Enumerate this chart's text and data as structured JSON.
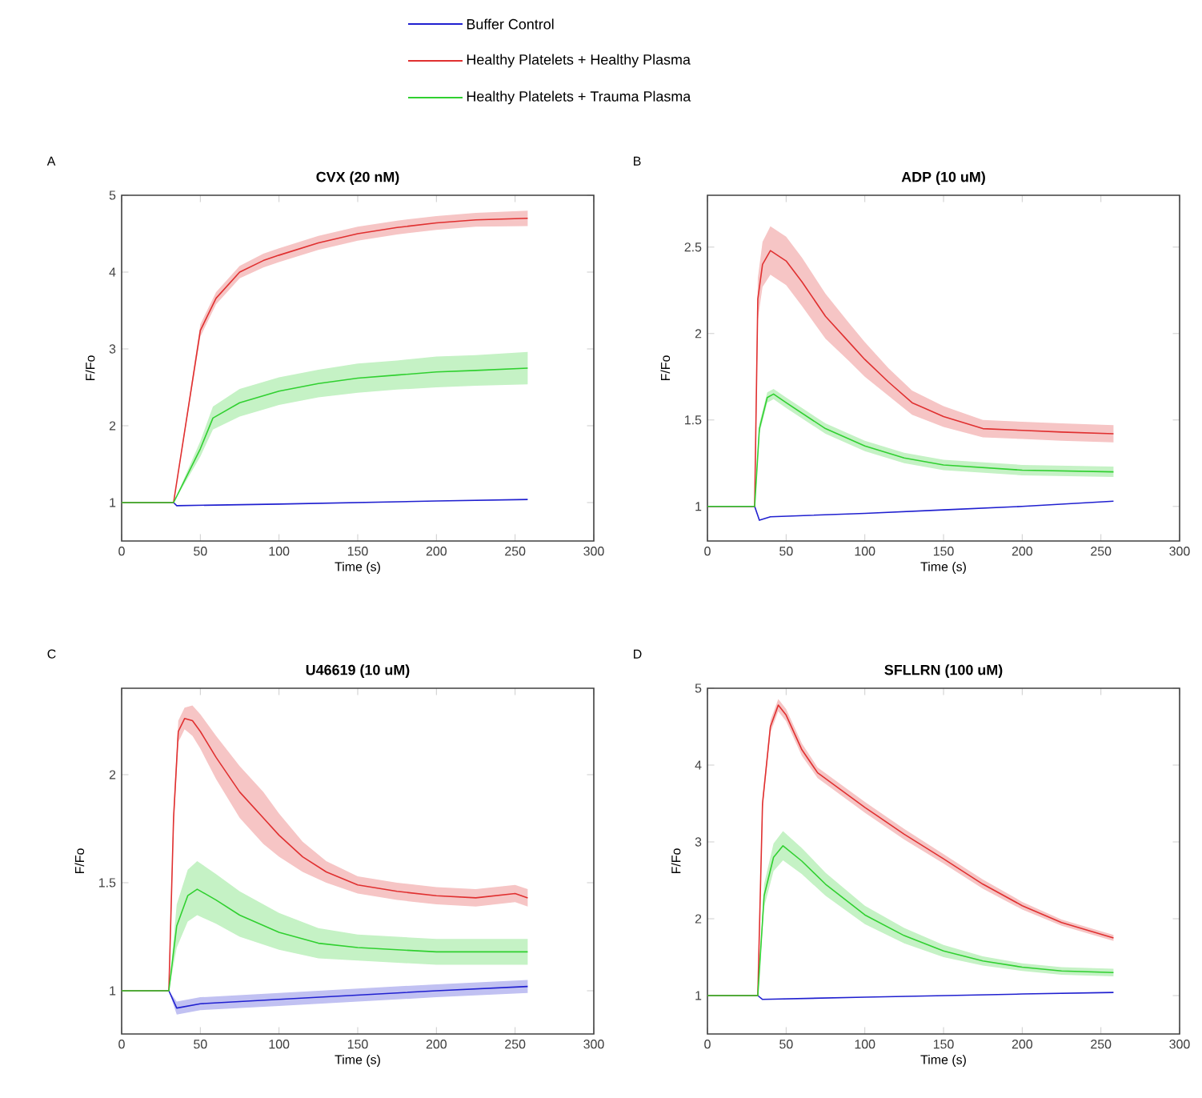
{
  "chart_data": [
    {
      "type": "line",
      "title": "CVX (20 nM)",
      "xlabel": "Time (s)",
      "ylabel": "F/Fo",
      "annotations": [
        "A"
      ],
      "legend": "top",
      "xlim": [
        0,
        300
      ],
      "ylim": [
        0.5,
        5
      ],
      "xticks": [
        0,
        50,
        100,
        150,
        200,
        250,
        300
      ],
      "yticks": [
        1,
        2,
        3,
        4,
        5
      ],
      "series": [
        {
          "name": "Buffer Control",
          "color": "#2020d0",
          "x": [
            0,
            33,
            35,
            100,
            200,
            258
          ],
          "values": [
            1,
            1,
            0.96,
            0.98,
            1.02,
            1.04
          ]
        },
        {
          "name": "Healthy Platelets + Healthy Plasma",
          "color": "#e03030",
          "x": [
            0,
            33,
            50,
            60,
            75,
            90,
            100,
            125,
            150,
            175,
            200,
            225,
            258
          ],
          "values": [
            1,
            1,
            3.24,
            3.66,
            4.0,
            4.15,
            4.22,
            4.38,
            4.5,
            4.58,
            4.64,
            4.68,
            4.7
          ],
          "lower": [
            1,
            1,
            3.16,
            3.58,
            3.92,
            4.06,
            4.13,
            4.29,
            4.41,
            4.49,
            4.55,
            4.59,
            4.6
          ],
          "upper": [
            1,
            1,
            3.32,
            3.74,
            4.08,
            4.24,
            4.31,
            4.47,
            4.59,
            4.67,
            4.73,
            4.77,
            4.8
          ]
        },
        {
          "name": "Healthy Platelets + Trauma Plasma",
          "color": "#30d030",
          "x": [
            0,
            33,
            50,
            58,
            75,
            100,
            125,
            150,
            175,
            200,
            225,
            258
          ],
          "values": [
            1,
            1,
            1.7,
            2.1,
            2.3,
            2.45,
            2.55,
            2.62,
            2.66,
            2.7,
            2.72,
            2.75
          ],
          "lower": [
            1,
            1,
            1.6,
            1.95,
            2.12,
            2.27,
            2.37,
            2.43,
            2.47,
            2.5,
            2.52,
            2.54
          ],
          "upper": [
            1,
            1,
            1.8,
            2.25,
            2.48,
            2.63,
            2.73,
            2.81,
            2.85,
            2.9,
            2.92,
            2.96
          ]
        }
      ]
    },
    {
      "type": "line",
      "title": "ADP (10 uM)",
      "xlabel": "Time (s)",
      "ylabel": "F/Fo",
      "annotations": [
        "B"
      ],
      "xlim": [
        0,
        300
      ],
      "ylim": [
        0.8,
        2.8
      ],
      "xticks": [
        0,
        50,
        100,
        150,
        200,
        250,
        300
      ],
      "yticks": [
        1,
        1.5,
        2,
        2.5
      ],
      "series": [
        {
          "color": "#2020d0",
          "x": [
            0,
            30,
            33,
            40,
            100,
            150,
            200,
            258
          ],
          "values": [
            1,
            1,
            0.92,
            0.94,
            0.96,
            0.98,
            1.0,
            1.03
          ]
        },
        {
          "color": "#e03030",
          "x": [
            0,
            30,
            32,
            35,
            40,
            50,
            60,
            75,
            90,
            100,
            115,
            130,
            150,
            175,
            200,
            225,
            258
          ],
          "values": [
            1,
            1,
            2.2,
            2.4,
            2.48,
            2.42,
            2.3,
            2.1,
            1.95,
            1.85,
            1.72,
            1.6,
            1.52,
            1.45,
            1.44,
            1.43,
            1.42
          ],
          "lower": [
            1,
            1,
            2.08,
            2.27,
            2.34,
            2.28,
            2.16,
            1.97,
            1.84,
            1.75,
            1.64,
            1.53,
            1.46,
            1.4,
            1.39,
            1.38,
            1.37
          ],
          "upper": [
            1,
            1,
            2.32,
            2.53,
            2.62,
            2.56,
            2.44,
            2.23,
            2.06,
            1.95,
            1.8,
            1.67,
            1.58,
            1.5,
            1.49,
            1.48,
            1.47
          ]
        },
        {
          "color": "#30d030",
          "x": [
            0,
            30,
            33,
            38,
            42,
            50,
            75,
            100,
            125,
            150,
            200,
            258
          ],
          "values": [
            1,
            1,
            1.45,
            1.63,
            1.65,
            1.6,
            1.45,
            1.35,
            1.28,
            1.24,
            1.21,
            1.2
          ],
          "lower": [
            1,
            1,
            1.42,
            1.6,
            1.62,
            1.57,
            1.42,
            1.32,
            1.25,
            1.21,
            1.18,
            1.17
          ],
          "upper": [
            1,
            1,
            1.48,
            1.66,
            1.68,
            1.63,
            1.48,
            1.38,
            1.31,
            1.27,
            1.24,
            1.23
          ]
        }
      ]
    },
    {
      "type": "line",
      "title": "U46619 (10 uM)",
      "xlabel": "Time (s)",
      "ylabel": "F/Fo",
      "annotations": [
        "C"
      ],
      "xlim": [
        0,
        300
      ],
      "ylim": [
        0.8,
        2.4
      ],
      "xticks": [
        0,
        50,
        100,
        150,
        200,
        250,
        300
      ],
      "yticks": [
        1,
        1.5,
        2
      ],
      "series": [
        {
          "color": "#2020d0",
          "x": [
            0,
            30,
            35,
            50,
            100,
            200,
            258
          ],
          "values": [
            1,
            1,
            0.92,
            0.94,
            0.96,
            1.0,
            1.02
          ],
          "lower": [
            1,
            1,
            0.89,
            0.91,
            0.93,
            0.97,
            0.99
          ],
          "upper": [
            1,
            1,
            0.95,
            0.97,
            0.99,
            1.03,
            1.05
          ]
        },
        {
          "color": "#e03030",
          "x": [
            0,
            30,
            33,
            36,
            40,
            45,
            50,
            60,
            75,
            90,
            100,
            115,
            130,
            150,
            175,
            200,
            225,
            250,
            258
          ],
          "values": [
            1,
            1,
            1.8,
            2.2,
            2.26,
            2.25,
            2.2,
            2.08,
            1.92,
            1.8,
            1.72,
            1.62,
            1.55,
            1.49,
            1.46,
            1.44,
            1.43,
            1.45,
            1.43
          ],
          "lower": [
            1,
            1,
            1.75,
            2.15,
            2.21,
            2.18,
            2.12,
            1.98,
            1.8,
            1.68,
            1.62,
            1.55,
            1.5,
            1.45,
            1.42,
            1.4,
            1.39,
            1.41,
            1.39
          ],
          "upper": [
            1,
            1,
            1.85,
            2.25,
            2.31,
            2.32,
            2.28,
            2.18,
            2.04,
            1.92,
            1.82,
            1.69,
            1.6,
            1.53,
            1.5,
            1.48,
            1.47,
            1.49,
            1.47
          ]
        },
        {
          "color": "#30d030",
          "x": [
            0,
            30,
            35,
            42,
            48,
            60,
            75,
            100,
            125,
            150,
            200,
            258
          ],
          "values": [
            1,
            1,
            1.3,
            1.44,
            1.47,
            1.42,
            1.35,
            1.27,
            1.22,
            1.2,
            1.18,
            1.18
          ],
          "lower": [
            1,
            1,
            1.2,
            1.32,
            1.35,
            1.31,
            1.25,
            1.19,
            1.15,
            1.14,
            1.12,
            1.12
          ],
          "upper": [
            1,
            1,
            1.4,
            1.56,
            1.6,
            1.54,
            1.46,
            1.36,
            1.29,
            1.26,
            1.24,
            1.24
          ]
        }
      ]
    },
    {
      "type": "line",
      "title": "SFLLRN (100 uM)",
      "xlabel": "Time (s)",
      "ylabel": "F/Fo",
      "annotations": [
        "D"
      ],
      "xlim": [
        0,
        300
      ],
      "ylim": [
        0.5,
        5
      ],
      "xticks": [
        0,
        50,
        100,
        150,
        200,
        250,
        300
      ],
      "yticks": [
        1,
        2,
        3,
        4,
        5
      ],
      "series": [
        {
          "color": "#2020d0",
          "x": [
            0,
            32,
            35,
            100,
            200,
            258
          ],
          "values": [
            1,
            1,
            0.95,
            0.98,
            1.02,
            1.04
          ]
        },
        {
          "color": "#e03030",
          "x": [
            0,
            32,
            35,
            40,
            45,
            50,
            60,
            70,
            100,
            125,
            150,
            175,
            200,
            225,
            258
          ],
          "values": [
            1,
            1,
            3.5,
            4.5,
            4.78,
            4.65,
            4.2,
            3.9,
            3.45,
            3.1,
            2.78,
            2.45,
            2.17,
            1.95,
            1.75
          ],
          "lower": [
            1,
            1,
            3.42,
            4.42,
            4.7,
            4.57,
            4.12,
            3.83,
            3.38,
            3.03,
            2.72,
            2.39,
            2.12,
            1.91,
            1.71
          ],
          "upper": [
            1,
            1,
            3.58,
            4.58,
            4.86,
            4.73,
            4.28,
            3.97,
            3.52,
            3.17,
            2.84,
            2.51,
            2.22,
            1.99,
            1.79
          ]
        },
        {
          "color": "#30d030",
          "x": [
            0,
            32,
            36,
            42,
            48,
            60,
            75,
            100,
            125,
            150,
            175,
            200,
            225,
            258
          ],
          "values": [
            1,
            1,
            2.3,
            2.8,
            2.95,
            2.75,
            2.45,
            2.05,
            1.78,
            1.58,
            1.45,
            1.37,
            1.32,
            1.3
          ],
          "lower": [
            1,
            1,
            2.15,
            2.62,
            2.76,
            2.58,
            2.3,
            1.93,
            1.68,
            1.5,
            1.39,
            1.32,
            1.27,
            1.25
          ],
          "upper": [
            1,
            1,
            2.45,
            2.98,
            3.14,
            2.92,
            2.6,
            2.17,
            1.88,
            1.66,
            1.51,
            1.42,
            1.37,
            1.35
          ]
        }
      ]
    }
  ]
}
